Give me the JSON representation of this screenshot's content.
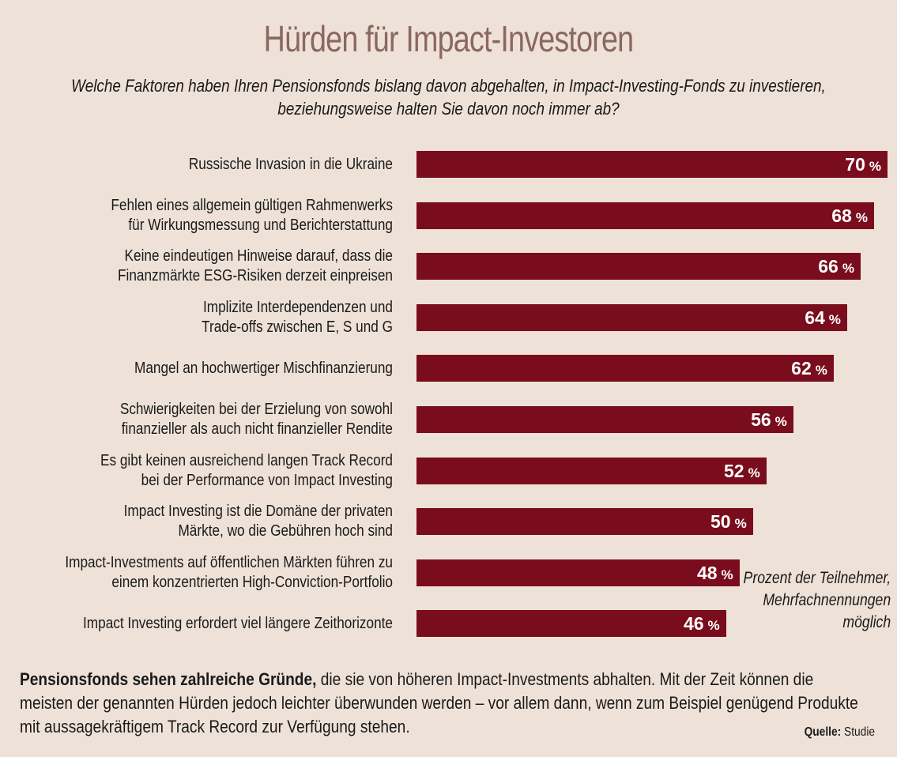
{
  "chart_data": {
    "type": "bar",
    "orientation": "horizontal",
    "title": "Hürden für Impact-Investoren",
    "subtitle": [
      "Welche Faktoren haben Ihren Pensionsfonds bislang davon abgehalten, in Impact-Investing-Fonds zu investieren,",
      "beziehungsweise halten Sie davon noch immer ab?"
    ],
    "categories": [
      [
        "Russische Invasion in die Ukraine"
      ],
      [
        "Fehlen eines allgemein gültigen Rahmenwerks",
        "für Wirkungsmessung und Berichterstattung"
      ],
      [
        "Keine eindeutigen Hinweise darauf, dass die",
        "Finanzmärkte ESG-Risiken derzeit einpreisen"
      ],
      [
        "Implizite Interdependenzen und",
        "Trade-offs zwischen E, S und G"
      ],
      [
        "Mangel an hochwertiger Mischfinanzierung"
      ],
      [
        "Schwierigkeiten bei der Erzielung von sowohl",
        "finanzieller als auch nicht finanzieller Rendite"
      ],
      [
        "Es gibt keinen ausreichend langen Track Record",
        "bei der Performance von Impact Investing"
      ],
      [
        "Impact Investing ist die Domäne der privaten",
        "Märkte, wo die Gebühren hoch sind"
      ],
      [
        "Impact-Investments auf öffentlichen Märkten führen zu",
        "einem konzentrierten High-Conviction-Portfolio"
      ],
      [
        "Impact Investing erfordert viel längere Zeithorizonte"
      ]
    ],
    "values": [
      70,
      68,
      66,
      64,
      62,
      56,
      52,
      50,
      48,
      46
    ],
    "value_unit": "%",
    "xlim": [
      0,
      70
    ],
    "grid": false,
    "bar_color": "#7a0d1d",
    "note": [
      "Prozent der Teilnehmer,",
      "Mehrfachnennungen",
      "möglich"
    ]
  },
  "footer": {
    "lead": "Pensionsfonds sehen zahlreiche Gründe,",
    "line1_rest": " die sie von höheren Impact-Investments abhalten. Mit der Zeit können die",
    "line2": "meisten der genannten Hürden jedoch leichter überwunden werden – vor allem dann, wenn zum Beispiel genügend Produkte",
    "line3": "mit aussagekräftigem Track Record zur Verfügung stehen."
  },
  "source": {
    "label": "Quelle:",
    "value": " Studie"
  }
}
